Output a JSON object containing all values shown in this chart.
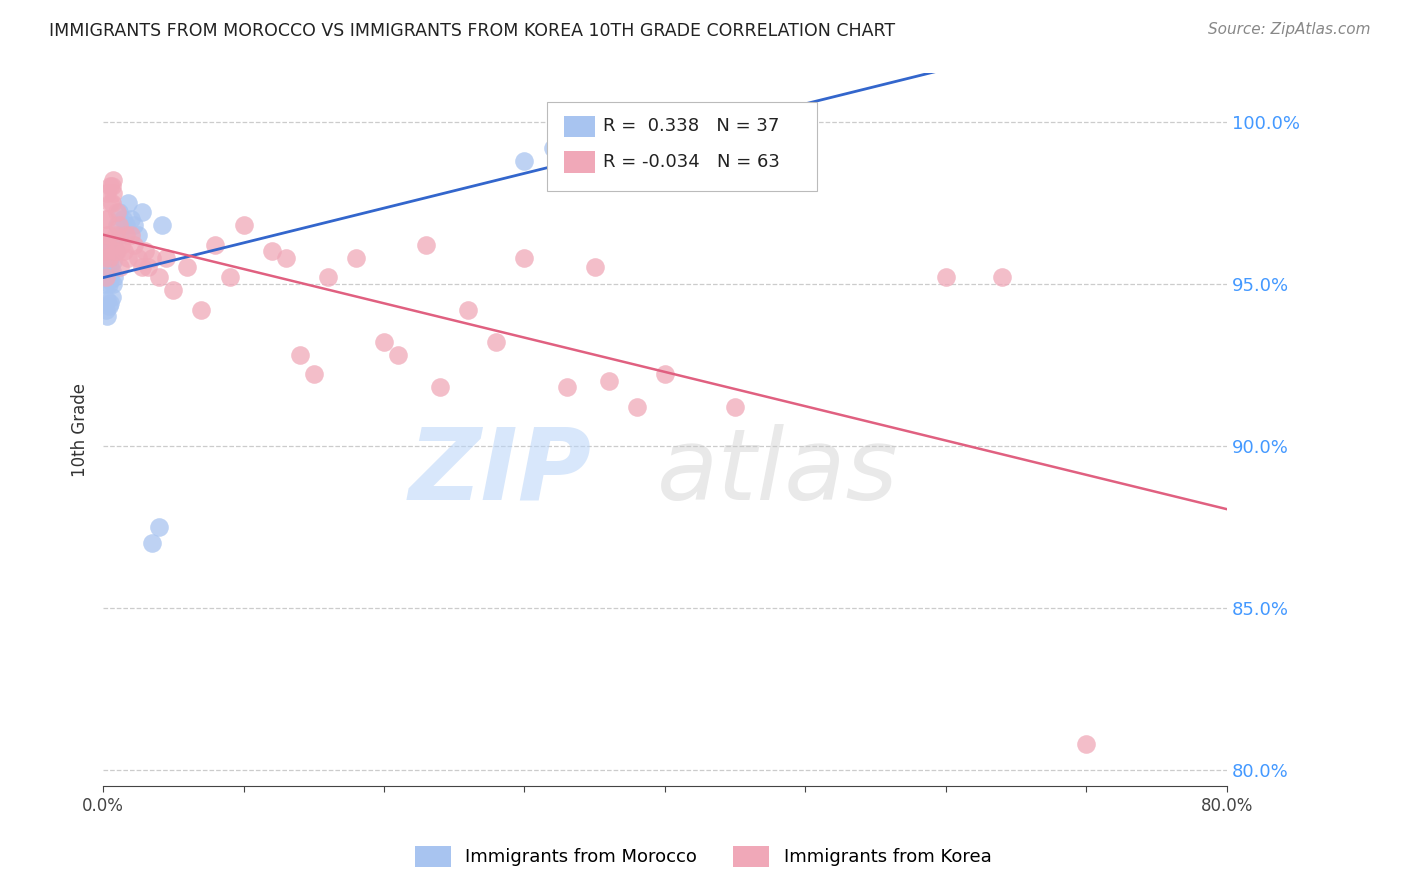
{
  "title": "IMMIGRANTS FROM MOROCCO VS IMMIGRANTS FROM KOREA 10TH GRADE CORRELATION CHART",
  "source": "Source: ZipAtlas.com",
  "ylabel": "10th Grade",
  "right_ytick_labels": [
    "100.0%",
    "95.0%",
    "90.0%",
    "85.0%",
    "80.0%"
  ],
  "right_ytick_values": [
    1.0,
    0.95,
    0.9,
    0.85,
    0.8
  ],
  "xlim": [
    0.0,
    0.8
  ],
  "ylim": [
    0.795,
    1.015
  ],
  "morocco_R": 0.338,
  "morocco_N": 37,
  "korea_R": -0.034,
  "korea_N": 63,
  "morocco_color": "#a8c4f0",
  "korea_color": "#f0a8b8",
  "morocco_line_color": "#3366cc",
  "korea_line_color": "#e06080",
  "morocco_x": [
    0.001,
    0.001,
    0.002,
    0.002,
    0.002,
    0.003,
    0.003,
    0.003,
    0.003,
    0.004,
    0.004,
    0.004,
    0.004,
    0.005,
    0.005,
    0.005,
    0.006,
    0.006,
    0.007,
    0.007,
    0.008,
    0.009,
    0.01,
    0.011,
    0.012,
    0.014,
    0.016,
    0.018,
    0.02,
    0.022,
    0.025,
    0.028,
    0.035,
    0.04,
    0.042,
    0.3,
    0.32
  ],
  "morocco_y": [
    0.95,
    0.955,
    0.942,
    0.952,
    0.96,
    0.94,
    0.945,
    0.953,
    0.961,
    0.943,
    0.95,
    0.956,
    0.962,
    0.944,
    0.951,
    0.958,
    0.946,
    0.954,
    0.95,
    0.957,
    0.952,
    0.96,
    0.968,
    0.972,
    0.965,
    0.97,
    0.968,
    0.975,
    0.97,
    0.968,
    0.965,
    0.972,
    0.87,
    0.875,
    0.968,
    0.988,
    0.992
  ],
  "korea_x": [
    0.001,
    0.001,
    0.001,
    0.002,
    0.002,
    0.003,
    0.003,
    0.003,
    0.004,
    0.004,
    0.005,
    0.005,
    0.006,
    0.006,
    0.007,
    0.007,
    0.008,
    0.009,
    0.01,
    0.01,
    0.011,
    0.012,
    0.013,
    0.015,
    0.016,
    0.018,
    0.02,
    0.022,
    0.025,
    0.028,
    0.03,
    0.032,
    0.035,
    0.04,
    0.045,
    0.05,
    0.06,
    0.07,
    0.08,
    0.09,
    0.1,
    0.12,
    0.13,
    0.14,
    0.15,
    0.16,
    0.18,
    0.2,
    0.21,
    0.23,
    0.24,
    0.26,
    0.28,
    0.3,
    0.33,
    0.35,
    0.36,
    0.38,
    0.4,
    0.45,
    0.6,
    0.64,
    0.7
  ],
  "korea_y": [
    0.958,
    0.963,
    0.97,
    0.952,
    0.96,
    0.965,
    0.97,
    0.978,
    0.958,
    0.965,
    0.975,
    0.98,
    0.975,
    0.98,
    0.978,
    0.982,
    0.96,
    0.965,
    0.96,
    0.972,
    0.968,
    0.955,
    0.962,
    0.96,
    0.965,
    0.958,
    0.965,
    0.962,
    0.958,
    0.955,
    0.96,
    0.955,
    0.958,
    0.952,
    0.958,
    0.948,
    0.955,
    0.942,
    0.962,
    0.952,
    0.968,
    0.96,
    0.958,
    0.928,
    0.922,
    0.952,
    0.958,
    0.932,
    0.928,
    0.962,
    0.918,
    0.942,
    0.932,
    0.958,
    0.918,
    0.955,
    0.92,
    0.912,
    0.922,
    0.912,
    0.952,
    0.952,
    0.808
  ],
  "background_color": "#ffffff",
  "grid_color": "#cccccc",
  "title_color": "#222222",
  "axis_label_color": "#333333",
  "right_axis_color": "#4499ff",
  "bottom_axis_color": "#444444"
}
